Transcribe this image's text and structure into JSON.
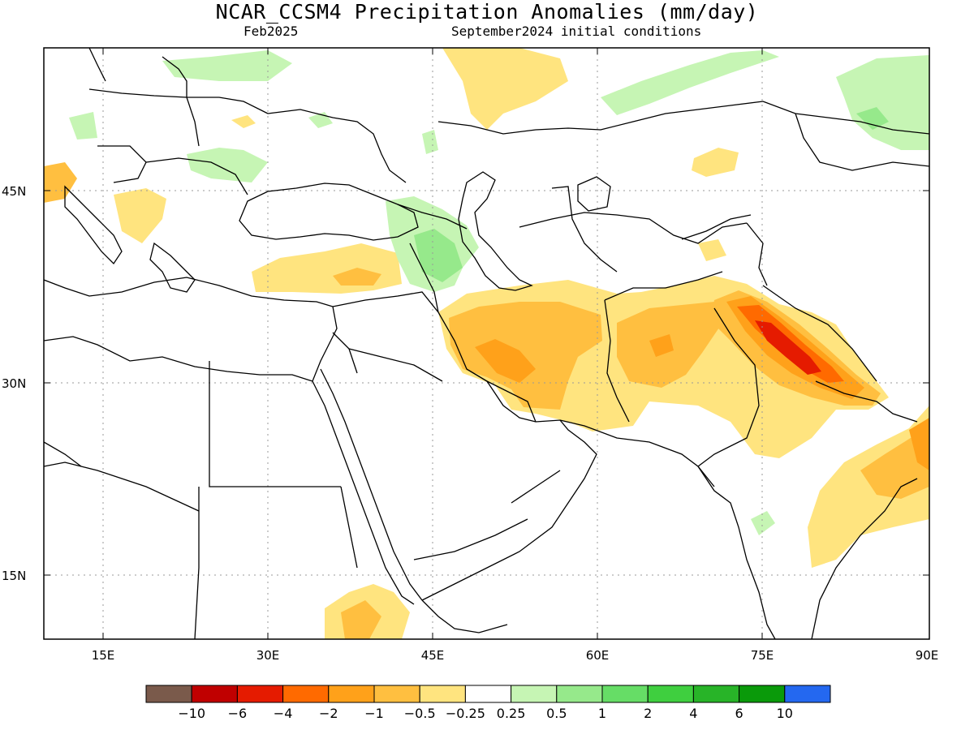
{
  "title": "NCAR_CCSM4 Precipitation Anomalies (mm/day)",
  "subtitle_left": "Feb2025",
  "subtitle_right": "September2024 initial conditions",
  "lat_labels": [
    "45N",
    "30N",
    "15N"
  ],
  "lon_labels": [
    "15E",
    "30E",
    "45E",
    "60E",
    "75E",
    "90E"
  ],
  "colorbar": {
    "colors": [
      "#7a5a4b",
      "#c00000",
      "#e51b00",
      "#ff6a00",
      "#ffa11a",
      "#ffbf40",
      "#ffe47f",
      "#ffffff",
      "#c6f5b4",
      "#96e98b",
      "#66dd66",
      "#3fcf3f",
      "#28b428",
      "#0a9a0a",
      "#2468f0"
    ],
    "labels": [
      "−10",
      "−6",
      "−4",
      "−2",
      "−1",
      "−0.5",
      "−0.25",
      "0.25",
      "0.5",
      "1",
      "2",
      "4",
      "6",
      "10"
    ]
  },
  "colors": {
    "dry_light": "#ffe47f",
    "dry_mid": "#ffbf40",
    "dry_strong": "#ffa11a",
    "dry_stronger": "#ff6a00",
    "dry_extreme": "#e51b00",
    "wet_light": "#c6f5b4",
    "wet_mid": "#96e98b"
  }
}
